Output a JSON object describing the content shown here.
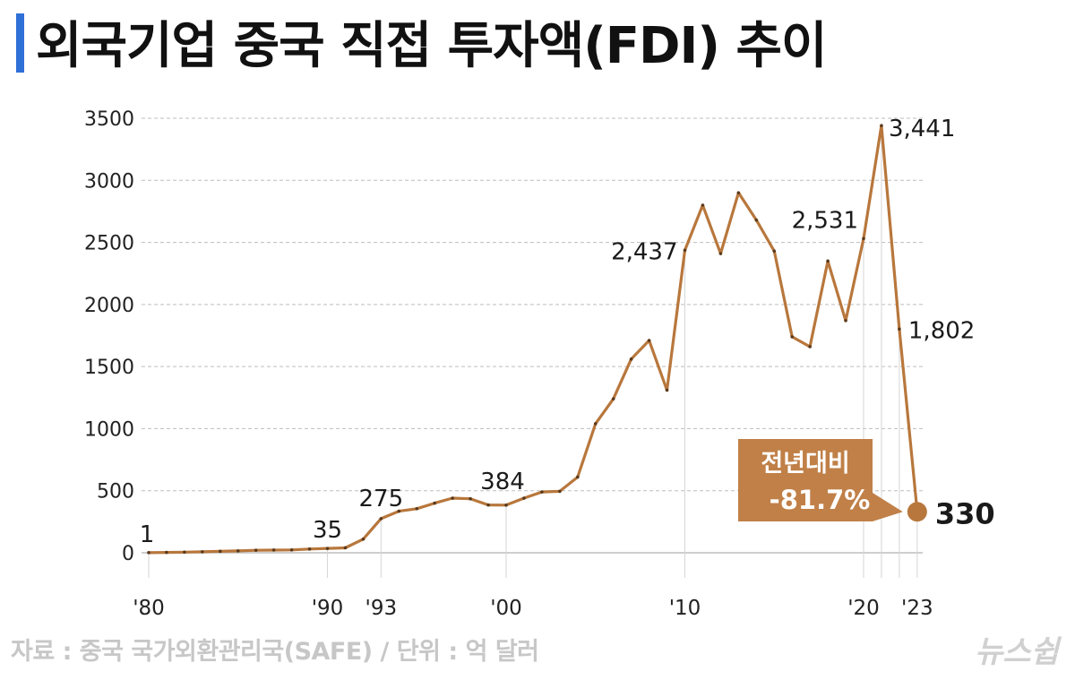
{
  "title": "외국기업 중국 직접 투자액(FDI) 추이",
  "source": "자료 : 중국 국가외환관리국(SAFE) / 단위 : 억 달러",
  "logo": "뉴스쉽",
  "colors": {
    "line": "#b8773c",
    "accent": "#2f6fd8",
    "grid": "#bdbdbd",
    "callout": "#c08048"
  },
  "chart_data": {
    "type": "line",
    "title": "외국기업 중국 직접 투자액(FDI) 추이",
    "xlabel": "",
    "ylabel": "",
    "ylim": [
      0,
      3500
    ],
    "yticks": [
      0,
      500,
      1000,
      1500,
      2000,
      2500,
      3000,
      3500
    ],
    "grid": "horizontal dashed",
    "x": [
      1980,
      1981,
      1982,
      1983,
      1984,
      1985,
      1986,
      1987,
      1988,
      1989,
      1990,
      1991,
      1992,
      1993,
      1994,
      1995,
      1996,
      1997,
      1998,
      1999,
      2000,
      2001,
      2002,
      2003,
      2004,
      2005,
      2006,
      2007,
      2008,
      2009,
      2010,
      2011,
      2012,
      2013,
      2014,
      2015,
      2016,
      2017,
      2018,
      2019,
      2020,
      2021,
      2022,
      2023
    ],
    "series": [
      {
        "values": [
          1,
          3,
          5,
          8,
          12,
          15,
          20,
          22,
          23,
          30,
          35,
          40,
          110,
          275,
          335,
          355,
          400,
          440,
          435,
          385,
          384,
          440,
          490,
          495,
          610,
          1040,
          1240,
          1560,
          1710,
          1310,
          2437,
          2800,
          2410,
          2900,
          2680,
          2430,
          1740,
          1660,
          2350,
          1870,
          2531,
          3441,
          1802,
          330
        ]
      }
    ],
    "x_tick_labels": [
      {
        "x": 1980,
        "label": "'80"
      },
      {
        "x": 1990,
        "label": "'90"
      },
      {
        "x": 1993,
        "label": "'93"
      },
      {
        "x": 2000,
        "label": "'00"
      },
      {
        "x": 2010,
        "label": "'10"
      },
      {
        "x": 2020,
        "label": "'20"
      },
      {
        "x": 2023,
        "label": "'23"
      }
    ],
    "data_labels": [
      {
        "x": 1980,
        "text": "1"
      },
      {
        "x": 1990,
        "text": "35"
      },
      {
        "x": 1993,
        "text": "275"
      },
      {
        "x": 2000,
        "text": "384"
      },
      {
        "x": 2010,
        "text": "2,437"
      },
      {
        "x": 2020,
        "text": "2,531"
      },
      {
        "x": 2021,
        "text": "3,441"
      },
      {
        "x": 2022,
        "text": "1,802"
      },
      {
        "x": 2023,
        "text": "330"
      }
    ],
    "annotation": {
      "line1": "전년대비",
      "line2": "-81.7%"
    }
  }
}
